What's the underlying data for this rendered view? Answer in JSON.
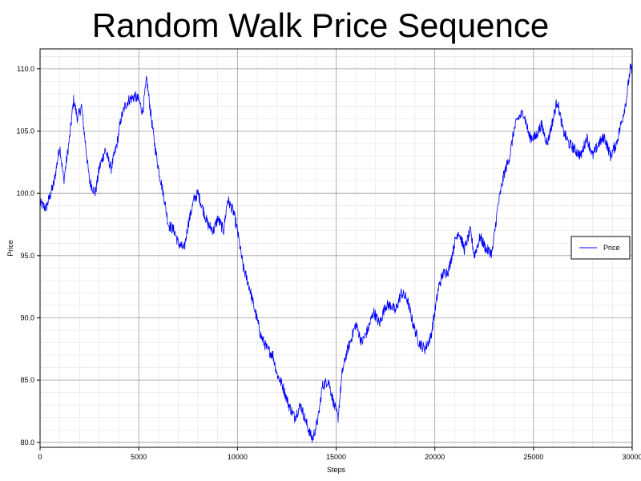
{
  "chart_data": {
    "type": "line",
    "title": "Random Walk Price Sequence",
    "xlabel": "Steps",
    "ylabel": "Price",
    "xlim": [
      0,
      30000
    ],
    "ylim": [
      79.6,
      111.6
    ],
    "xticks": [
      0,
      5000,
      10000,
      15000,
      20000,
      25000,
      30000
    ],
    "xtick_labels": [
      "0",
      "5000",
      "10000",
      "15000",
      "20000",
      "25000",
      "30000"
    ],
    "yticks": [
      80,
      85,
      90,
      95,
      100,
      105,
      110
    ],
    "ytick_labels": [
      "80.0",
      "85.0",
      "90.0",
      "95.0",
      "100.0",
      "105.0",
      "110.0"
    ],
    "grid": true,
    "legend_position": "right",
    "series": [
      {
        "name": "Price",
        "color": "#0000ff",
        "x": [
          0,
          300,
          700,
          1000,
          1200,
          1500,
          1700,
          1900,
          2100,
          2300,
          2500,
          2800,
          3000,
          3300,
          3600,
          3900,
          4100,
          4300,
          4500,
          4800,
          5000,
          5200,
          5400,
          5600,
          5800,
          6000,
          6300,
          6500,
          6800,
          7000,
          7300,
          7500,
          7800,
          8000,
          8200,
          8500,
          8800,
          9000,
          9300,
          9500,
          9800,
          10000,
          10300,
          10600,
          10900,
          11200,
          11500,
          11800,
          12000,
          12300,
          12600,
          12900,
          13200,
          13500,
          13800,
          14100,
          14300,
          14600,
          14900,
          15100,
          15300,
          15500,
          15800,
          16000,
          16300,
          16600,
          16900,
          17200,
          17500,
          17800,
          18000,
          18300,
          18600,
          18900,
          19200,
          19500,
          19800,
          20000,
          20200,
          20400,
          20700,
          21000,
          21200,
          21500,
          21800,
          22000,
          22300,
          22600,
          22900,
          23200,
          23500,
          23800,
          24000,
          24200,
          24500,
          24800,
          25100,
          25400,
          25700,
          26000,
          26200,
          26500,
          26800,
          27100,
          27400,
          27700,
          28000,
          28300,
          28600,
          28900,
          29200,
          29500,
          29700,
          29900,
          30000
        ],
        "values": [
          99.2,
          98.8,
          100.8,
          103.8,
          101.0,
          104.5,
          107.5,
          106.0,
          107.0,
          104.0,
          101.0,
          100.0,
          102.0,
          103.5,
          102.0,
          104.0,
          106.0,
          107.0,
          107.5,
          107.8,
          107.5,
          106.5,
          109.2,
          106.5,
          104.0,
          102.0,
          99.5,
          97.5,
          97.0,
          96.0,
          95.5,
          97.5,
          99.5,
          100.0,
          99.0,
          97.5,
          97.0,
          98.0,
          97.0,
          99.5,
          98.5,
          97.0,
          94.0,
          92.5,
          90.5,
          88.5,
          87.5,
          87.0,
          85.5,
          84.5,
          83.0,
          82.0,
          83.0,
          81.5,
          80.2,
          82.0,
          84.5,
          85.0,
          83.0,
          82.0,
          85.5,
          87.0,
          88.5,
          89.5,
          88.0,
          89.0,
          90.5,
          89.5,
          91.0,
          91.0,
          90.5,
          92.0,
          91.5,
          89.5,
          88.0,
          87.5,
          88.5,
          90.5,
          92.5,
          93.5,
          93.8,
          96.0,
          97.0,
          95.5,
          97.0,
          95.0,
          96.5,
          95.5,
          95.2,
          99.0,
          101.5,
          103.0,
          105.0,
          106.0,
          106.5,
          104.5,
          104.5,
          105.5,
          104.0,
          106.0,
          107.5,
          105.0,
          104.0,
          103.5,
          103.0,
          104.5,
          103.0,
          104.0,
          104.5,
          103.0,
          104.0,
          106.0,
          107.5,
          110.0,
          109.8
        ]
      }
    ]
  }
}
